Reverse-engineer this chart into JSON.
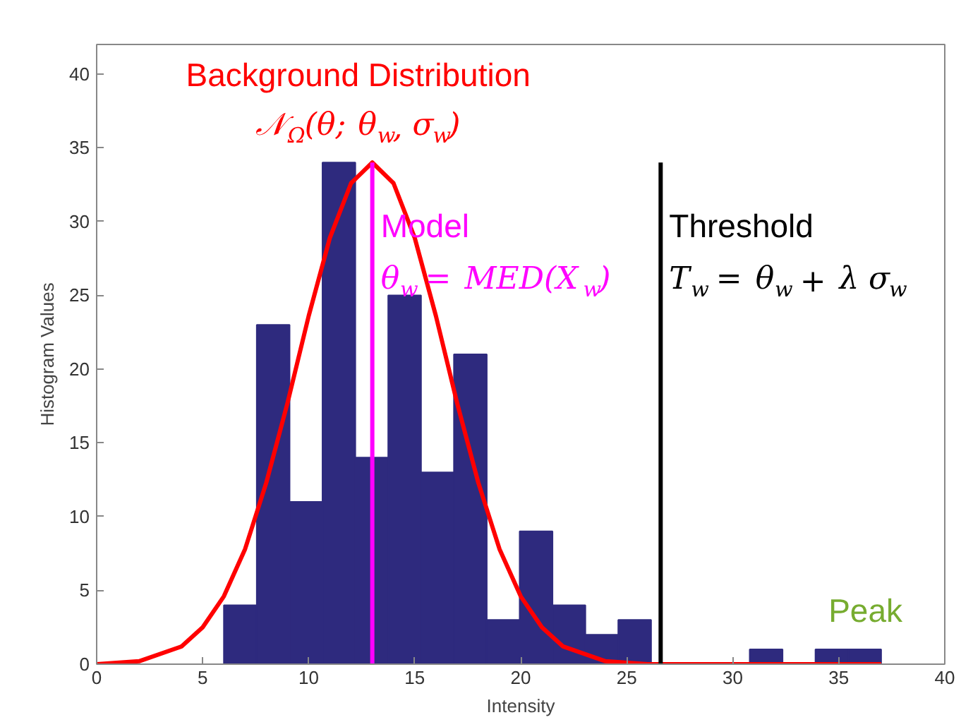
{
  "chart_data": {
    "type": "histogram",
    "xlabel": "Intensity",
    "ylabel": "Histogram Values",
    "bins": [
      6,
      7.55,
      9.1,
      10.65,
      12.2,
      13.75,
      15.3,
      16.85,
      18.4,
      19.95,
      21.5,
      23.05,
      24.6,
      26.15,
      27.7,
      29.25,
      30.8,
      32.35,
      33.9,
      35.45,
      37
    ],
    "values": [
      4,
      23,
      11,
      34,
      14,
      25,
      13,
      21,
      3,
      9,
      4,
      2,
      3,
      0,
      0,
      0,
      1,
      0,
      1,
      1
    ],
    "color": "#2e2a7e",
    "series": [
      {
        "type": "line",
        "name": "Background Distribution\n𝒩$_{Ω}$(θ; θ$_{w}$, σ$_{w}$)",
        "color": "#ff0000",
        "x": [
          0,
          2,
          4,
          5,
          6,
          7,
          8,
          9,
          10,
          11,
          12,
          13,
          14,
          15,
          16,
          17,
          18,
          19,
          20,
          21,
          22,
          24,
          26,
          30,
          37
        ],
        "values": [
          0,
          0.2,
          1.2,
          2.5,
          4.6,
          7.8,
          12.3,
          17.7,
          23.6,
          28.9,
          32.6,
          34,
          32.6,
          28.9,
          23.6,
          17.7,
          12.3,
          7.8,
          4.6,
          2.5,
          1.2,
          0.2,
          0,
          0,
          0
        ]
      },
      {
        "type": "line",
        "name": "Model\nθ$_{w}$ = MED(X$_{w}$)",
        "color": "#ff00ff",
        "x": [
          13,
          13
        ],
        "values": [
          0,
          34
        ]
      },
      {
        "type": "line",
        "name": "Threshold\nT$_{w}$ = θ$_{w}$ + λ σ$_{w}$",
        "color": "#000000",
        "x": [
          26.6,
          26.6
        ],
        "values": [
          0,
          34
        ]
      }
    ],
    "annotations": [
      "Peak"
    ],
    "xlim": [
      0,
      40
    ],
    "ylim": [
      0,
      42
    ],
    "xticks": [
      0,
      5,
      10,
      15,
      20,
      25,
      30,
      35,
      40
    ],
    "yticks": [
      0,
      5,
      10,
      15,
      20,
      25,
      30,
      35,
      40
    ],
    "grid": false
  }
}
